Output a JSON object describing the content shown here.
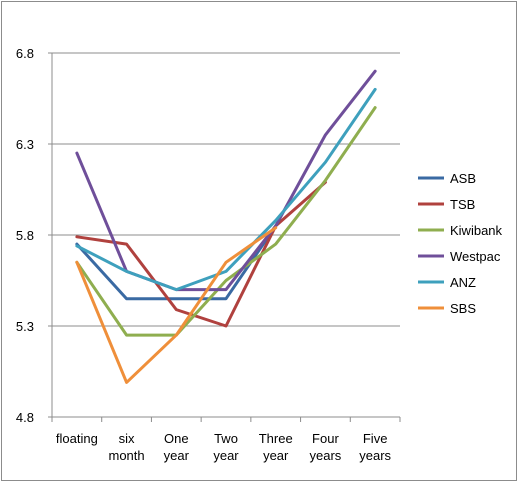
{
  "chart_data": {
    "type": "line",
    "title": "",
    "xlabel": "",
    "ylabel": "",
    "categories": [
      [
        "floating"
      ],
      [
        "six",
        "month"
      ],
      [
        "One",
        "year"
      ],
      [
        "Two",
        "year"
      ],
      [
        "Three",
        "year"
      ],
      [
        "Four",
        "years"
      ],
      [
        "Five",
        "years"
      ]
    ],
    "ylim": [
      4.8,
      6.8
    ],
    "yticks": [
      "4.8",
      "5.3",
      "5.8",
      "6.3",
      "6.8"
    ],
    "grid": "horizontal",
    "legend_position": "right",
    "series": [
      {
        "name": "ASB",
        "color": "#3a6aa3",
        "values": [
          5.75,
          5.45,
          5.45,
          5.45,
          5.85,
          null,
          null
        ]
      },
      {
        "name": "TSB",
        "color": "#b0413e",
        "values": [
          5.79,
          5.75,
          5.39,
          5.3,
          5.85,
          6.09,
          null
        ]
      },
      {
        "name": "Kiwibank",
        "color": "#8fae4f",
        "values": [
          5.65,
          5.25,
          5.25,
          5.55,
          5.75,
          6.1,
          6.5
        ]
      },
      {
        "name": "Westpac",
        "color": "#6f4f9a",
        "values": [
          6.25,
          5.6,
          5.5,
          5.5,
          5.85,
          6.35,
          6.7
        ]
      },
      {
        "name": "ANZ",
        "color": "#3ea0bd",
        "values": [
          5.74,
          5.6,
          5.5,
          5.6,
          5.88,
          6.2,
          6.6
        ]
      },
      {
        "name": "SBS",
        "color": "#ef8f3a",
        "values": [
          5.65,
          4.99,
          5.25,
          5.65,
          5.84,
          null,
          null
        ]
      }
    ]
  }
}
